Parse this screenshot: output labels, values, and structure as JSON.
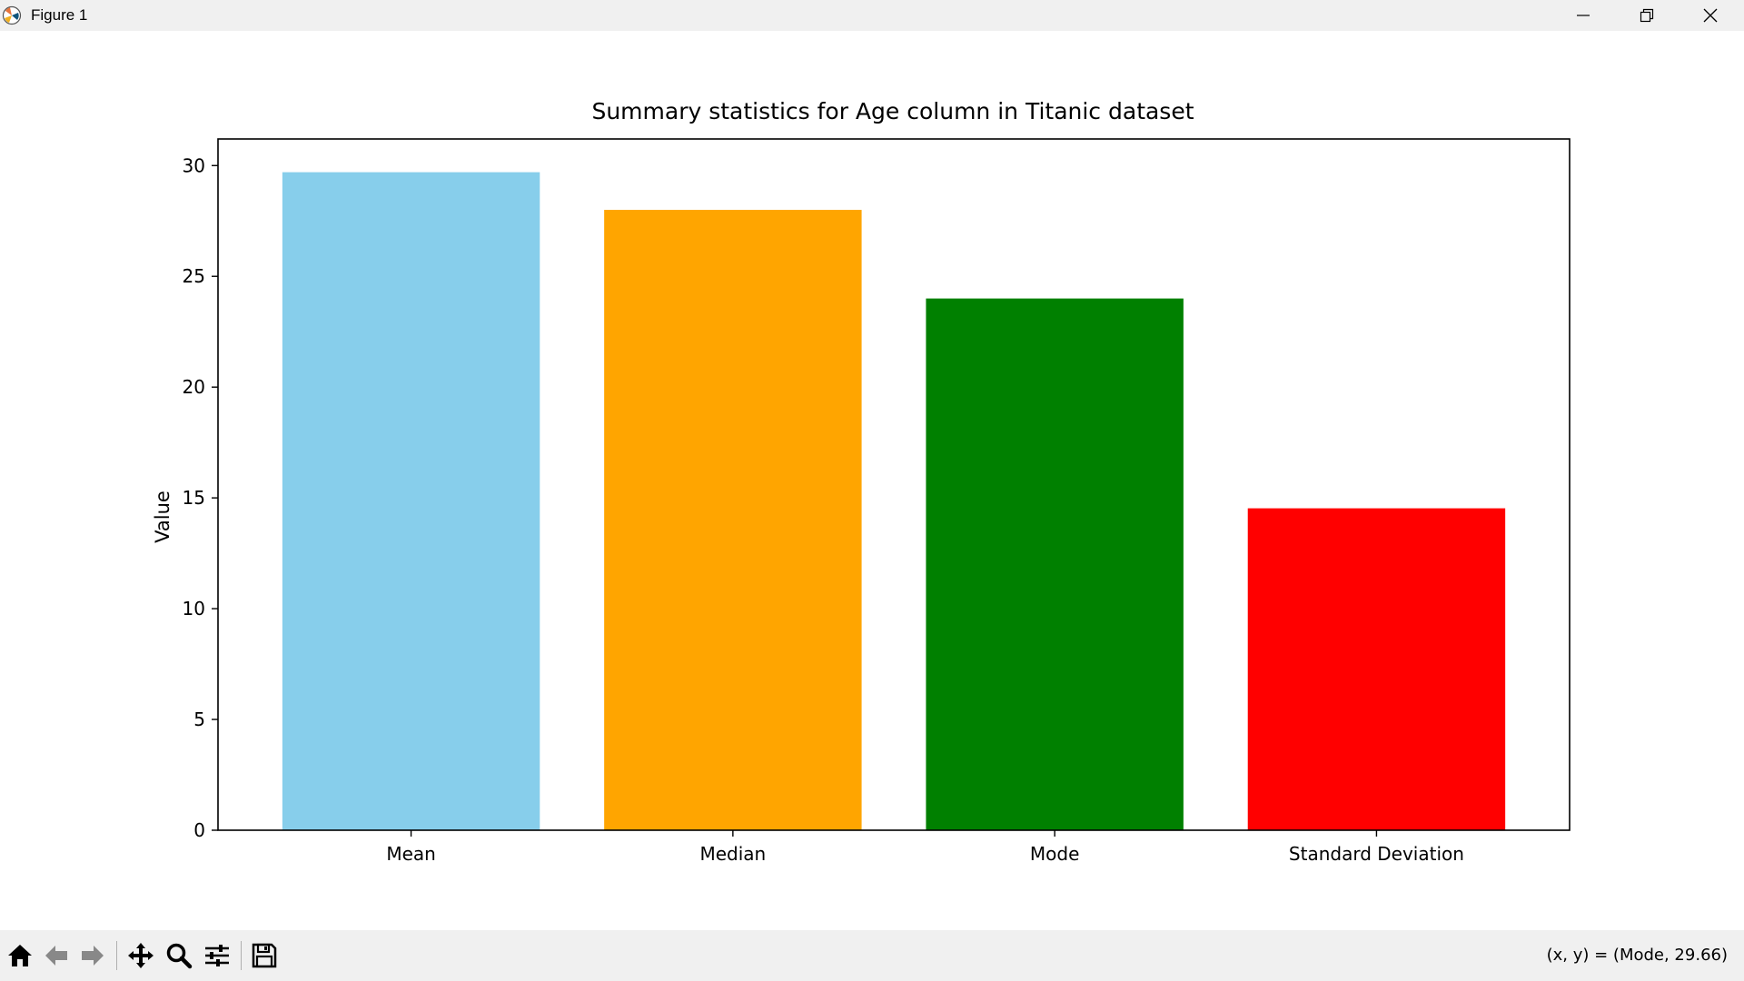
{
  "window": {
    "title": "Figure 1",
    "minimize_icon": "minimize-icon",
    "maximize_icon": "restore-icon",
    "close_icon": "close-icon"
  },
  "toolbar": {
    "buttons": [
      {
        "name": "home",
        "icon": "home-icon"
      },
      {
        "name": "back",
        "icon": "arrow-left-icon"
      },
      {
        "name": "forward",
        "icon": "arrow-right-icon"
      },
      {
        "name": "pan",
        "icon": "move-icon"
      },
      {
        "name": "zoom",
        "icon": "magnifier-icon"
      },
      {
        "name": "configure",
        "icon": "sliders-icon"
      },
      {
        "name": "save",
        "icon": "floppy-disk-icon"
      }
    ],
    "coordinates": "(x, y) = (Mode, 29.66)"
  },
  "chart_data": {
    "type": "bar",
    "title": "Summary statistics for Age column in Titanic dataset",
    "xlabel": "",
    "ylabel": "Value",
    "categories": [
      "Mean",
      "Median",
      "Mode",
      "Standard Deviation"
    ],
    "values": [
      29.7,
      28.0,
      24.0,
      14.53
    ],
    "colors": [
      "#87ceeb",
      "#ffa500",
      "#008000",
      "#ff0000"
    ],
    "ylim": [
      0,
      31.2
    ],
    "yticks": [
      0,
      5,
      10,
      15,
      20,
      25,
      30
    ],
    "grid": false
  }
}
